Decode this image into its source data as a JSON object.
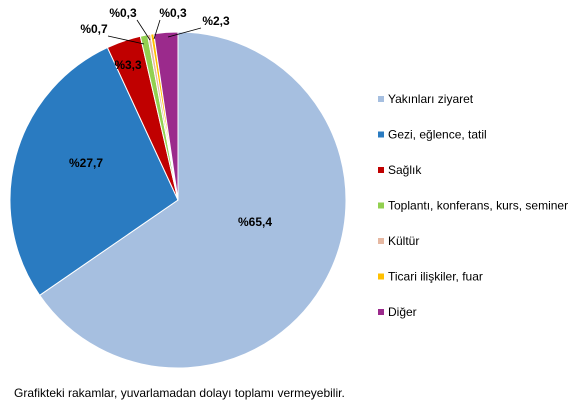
{
  "chart_data": {
    "type": "pie",
    "title": "",
    "legend_position": "right",
    "slices": [
      {
        "label": "Yakınları ziyaret",
        "value": 65.4,
        "display": "%65,4",
        "color": "#a6bfe0"
      },
      {
        "label": "Gezi, eğlence, tatil",
        "value": 27.7,
        "display": "%27,7",
        "color": "#2a7bc1"
      },
      {
        "label": "Sağlık",
        "value": 3.3,
        "display": "%3,3",
        "color": "#c00000"
      },
      {
        "label": "Toplantı, konferans, kurs, seminer",
        "value": 0.7,
        "display": "%0,7",
        "color": "#92d050"
      },
      {
        "label": "Kültür",
        "value": 0.3,
        "display": "%0,3",
        "color": "#e6b8a2"
      },
      {
        "label": "Ticari ilişkiler, fuar",
        "value": 0.3,
        "display": "%0,3",
        "color": "#ffc000"
      },
      {
        "label": "Diğer",
        "value": 2.3,
        "display": "%2,3",
        "color": "#9b2a8c"
      }
    ]
  },
  "footnote": "Grafikteki rakamlar, yuvarlamadan dolayı toplamı vermeyebilir."
}
